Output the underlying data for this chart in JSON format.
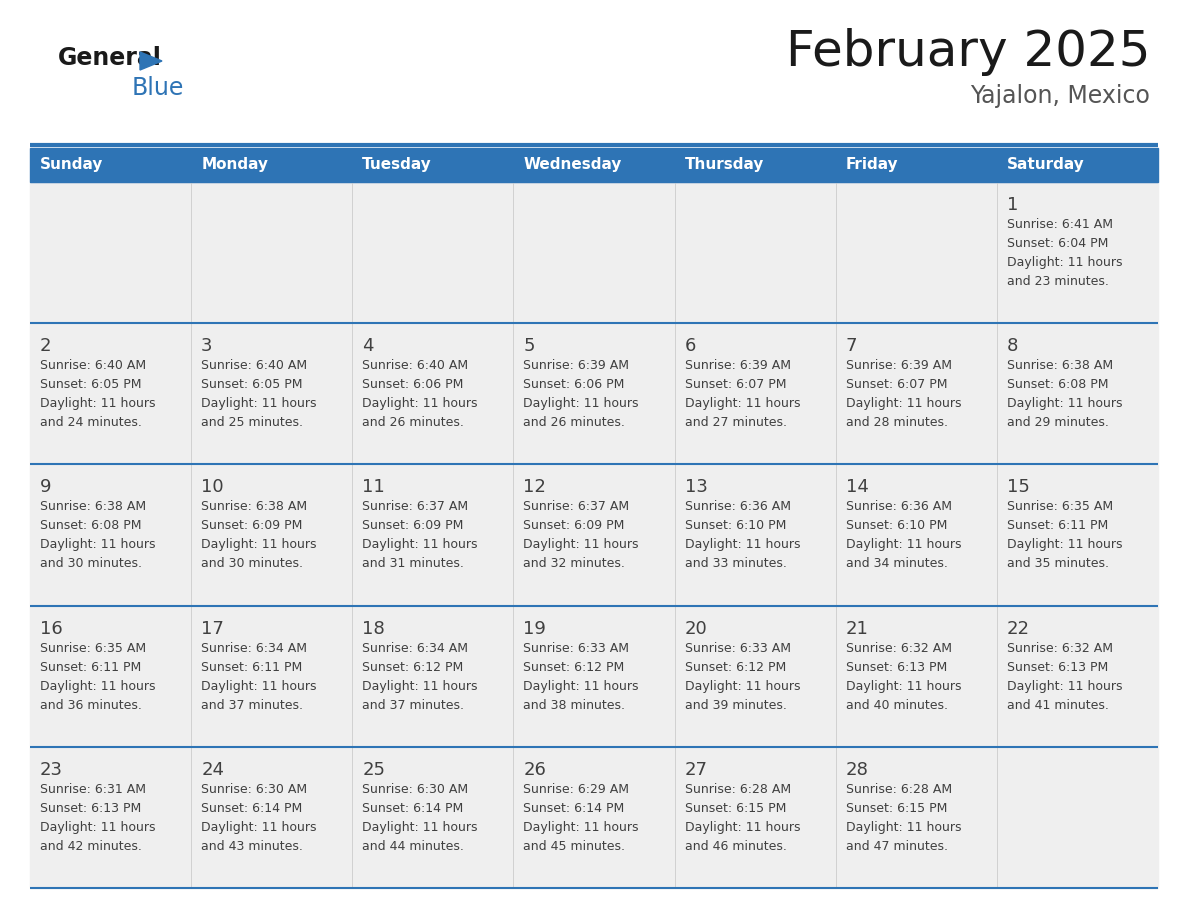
{
  "title": "February 2025",
  "subtitle": "Yajalon, Mexico",
  "header_bg": "#2E74B5",
  "header_text_color": "#FFFFFF",
  "day_names": [
    "Sunday",
    "Monday",
    "Tuesday",
    "Wednesday",
    "Thursday",
    "Friday",
    "Saturday"
  ],
  "cell_bg": "#EFEFEF",
  "border_color": "#2E74B5",
  "text_color": "#404040",
  "day_num_color": "#404040",
  "calendar_data": [
    [
      null,
      null,
      null,
      null,
      null,
      null,
      1
    ],
    [
      2,
      3,
      4,
      5,
      6,
      7,
      8
    ],
    [
      9,
      10,
      11,
      12,
      13,
      14,
      15
    ],
    [
      16,
      17,
      18,
      19,
      20,
      21,
      22
    ],
    [
      23,
      24,
      25,
      26,
      27,
      28,
      null
    ]
  ],
  "sunrise_data": {
    "1": [
      "Sunrise: 6:41 AM",
      "Sunset: 6:04 PM",
      "Daylight: 11 hours",
      "and 23 minutes."
    ],
    "2": [
      "Sunrise: 6:40 AM",
      "Sunset: 6:05 PM",
      "Daylight: 11 hours",
      "and 24 minutes."
    ],
    "3": [
      "Sunrise: 6:40 AM",
      "Sunset: 6:05 PM",
      "Daylight: 11 hours",
      "and 25 minutes."
    ],
    "4": [
      "Sunrise: 6:40 AM",
      "Sunset: 6:06 PM",
      "Daylight: 11 hours",
      "and 26 minutes."
    ],
    "5": [
      "Sunrise: 6:39 AM",
      "Sunset: 6:06 PM",
      "Daylight: 11 hours",
      "and 26 minutes."
    ],
    "6": [
      "Sunrise: 6:39 AM",
      "Sunset: 6:07 PM",
      "Daylight: 11 hours",
      "and 27 minutes."
    ],
    "7": [
      "Sunrise: 6:39 AM",
      "Sunset: 6:07 PM",
      "Daylight: 11 hours",
      "and 28 minutes."
    ],
    "8": [
      "Sunrise: 6:38 AM",
      "Sunset: 6:08 PM",
      "Daylight: 11 hours",
      "and 29 minutes."
    ],
    "9": [
      "Sunrise: 6:38 AM",
      "Sunset: 6:08 PM",
      "Daylight: 11 hours",
      "and 30 minutes."
    ],
    "10": [
      "Sunrise: 6:38 AM",
      "Sunset: 6:09 PM",
      "Daylight: 11 hours",
      "and 30 minutes."
    ],
    "11": [
      "Sunrise: 6:37 AM",
      "Sunset: 6:09 PM",
      "Daylight: 11 hours",
      "and 31 minutes."
    ],
    "12": [
      "Sunrise: 6:37 AM",
      "Sunset: 6:09 PM",
      "Daylight: 11 hours",
      "and 32 minutes."
    ],
    "13": [
      "Sunrise: 6:36 AM",
      "Sunset: 6:10 PM",
      "Daylight: 11 hours",
      "and 33 minutes."
    ],
    "14": [
      "Sunrise: 6:36 AM",
      "Sunset: 6:10 PM",
      "Daylight: 11 hours",
      "and 34 minutes."
    ],
    "15": [
      "Sunrise: 6:35 AM",
      "Sunset: 6:11 PM",
      "Daylight: 11 hours",
      "and 35 minutes."
    ],
    "16": [
      "Sunrise: 6:35 AM",
      "Sunset: 6:11 PM",
      "Daylight: 11 hours",
      "and 36 minutes."
    ],
    "17": [
      "Sunrise: 6:34 AM",
      "Sunset: 6:11 PM",
      "Daylight: 11 hours",
      "and 37 minutes."
    ],
    "18": [
      "Sunrise: 6:34 AM",
      "Sunset: 6:12 PM",
      "Daylight: 11 hours",
      "and 37 minutes."
    ],
    "19": [
      "Sunrise: 6:33 AM",
      "Sunset: 6:12 PM",
      "Daylight: 11 hours",
      "and 38 minutes."
    ],
    "20": [
      "Sunrise: 6:33 AM",
      "Sunset: 6:12 PM",
      "Daylight: 11 hours",
      "and 39 minutes."
    ],
    "21": [
      "Sunrise: 6:32 AM",
      "Sunset: 6:13 PM",
      "Daylight: 11 hours",
      "and 40 minutes."
    ],
    "22": [
      "Sunrise: 6:32 AM",
      "Sunset: 6:13 PM",
      "Daylight: 11 hours",
      "and 41 minutes."
    ],
    "23": [
      "Sunrise: 6:31 AM",
      "Sunset: 6:13 PM",
      "Daylight: 11 hours",
      "and 42 minutes."
    ],
    "24": [
      "Sunrise: 6:30 AM",
      "Sunset: 6:14 PM",
      "Daylight: 11 hours",
      "and 43 minutes."
    ],
    "25": [
      "Sunrise: 6:30 AM",
      "Sunset: 6:14 PM",
      "Daylight: 11 hours",
      "and 44 minutes."
    ],
    "26": [
      "Sunrise: 6:29 AM",
      "Sunset: 6:14 PM",
      "Daylight: 11 hours",
      "and 45 minutes."
    ],
    "27": [
      "Sunrise: 6:28 AM",
      "Sunset: 6:15 PM",
      "Daylight: 11 hours",
      "and 46 minutes."
    ],
    "28": [
      "Sunrise: 6:28 AM",
      "Sunset: 6:15 PM",
      "Daylight: 11 hours",
      "and 47 minutes."
    ]
  }
}
